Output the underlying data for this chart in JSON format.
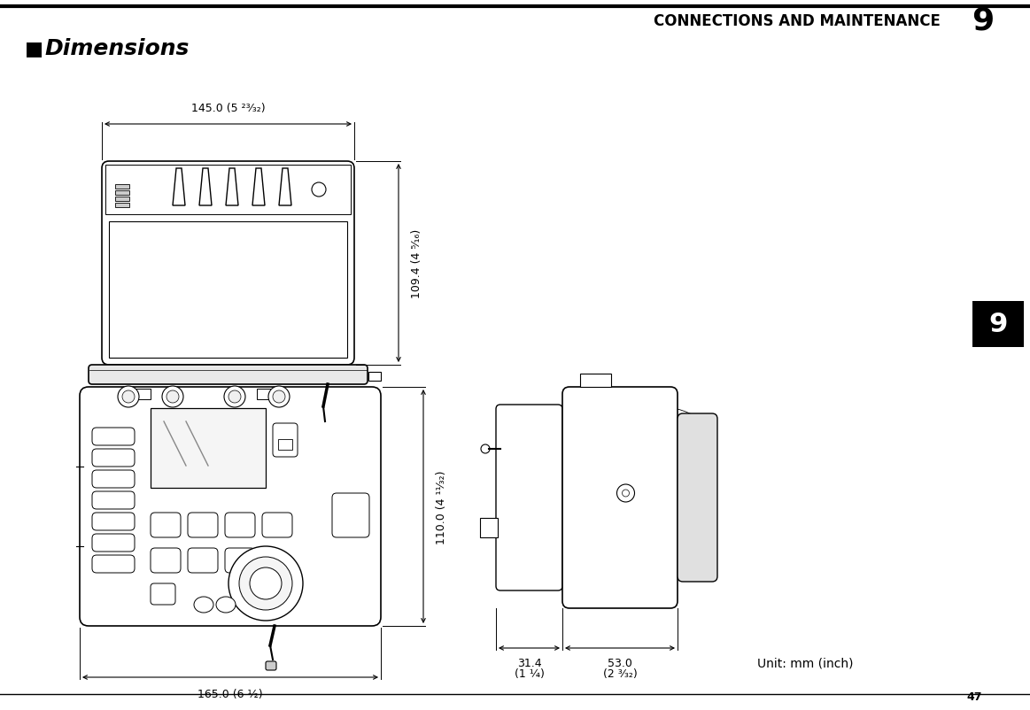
{
  "page_title": "CONNECTIONS AND MAINTENANCE",
  "page_number_right": "9",
  "page_number_bottom": "47",
  "section_marker": "■",
  "section_title": "Dimensions",
  "dim_top_width": "145.0 (5 ²³⁄₃₂)",
  "dim_top_height": "109.4 (4 ⁵⁄₁₆)",
  "dim_front_width": "165.0 (6 ½)",
  "dim_front_height": "110.0 (4 ¹¹⁄₃₂)",
  "dim_side_w1_line1": "31.4",
  "dim_side_w1_line2": "(1 ¼)",
  "dim_side_w2_line1": "53.0",
  "dim_side_w2_line2": "(2 ³⁄₃₂)",
  "unit_label": "Unit: mm (inch)",
  "bg_color": "#ffffff",
  "lc": "#000000"
}
